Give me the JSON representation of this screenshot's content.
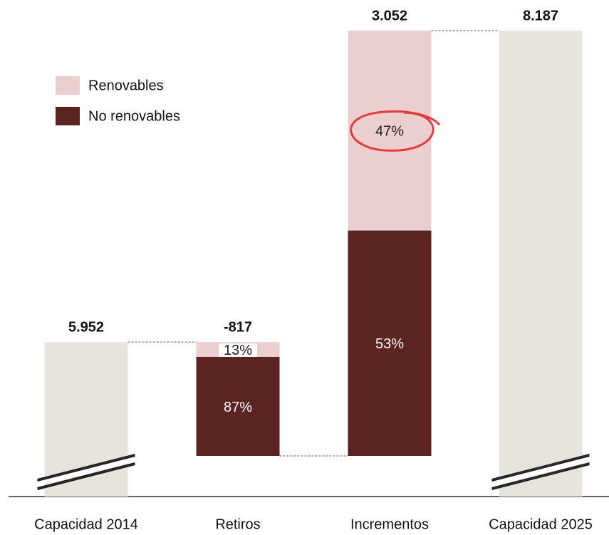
{
  "chart_data": {
    "type": "waterfall",
    "categories": [
      "Capacidad 2014",
      "Retiros",
      "Incrementos",
      "Capacidad 2025"
    ],
    "values": [
      5952,
      -817,
      3052,
      8187
    ],
    "value_labels": [
      "5.952",
      "-817",
      "3.052",
      "8.187"
    ],
    "total_color": "#e6e4dd",
    "series": [
      {
        "name": "Renovables",
        "color": "#ebcfd0",
        "values": [
          null,
          13,
          47,
          null
        ],
        "value_labels": [
          null,
          "13%",
          "47%",
          null
        ]
      },
      {
        "name": "No renovables",
        "color": "#5c2420",
        "values": [
          null,
          87,
          53,
          null
        ],
        "value_labels": [
          null,
          "87%",
          "53%",
          null
        ]
      }
    ],
    "legend": "upper left",
    "broken_axis": true
  }
}
